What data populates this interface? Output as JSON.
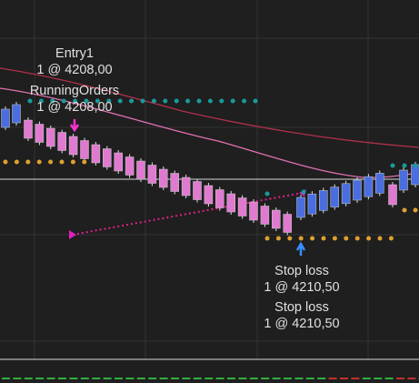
{
  "orders": [
    {
      "name": "Entry1",
      "detail": "1 @ 4208,00"
    },
    {
      "name": "RunningOrders",
      "detail": "1 @ 4208,00"
    },
    {
      "name": "Stop loss",
      "detail": "1 @ 4210,50"
    },
    {
      "name": "Stop loss",
      "detail": "1 @ 4210,50"
    }
  ]
}
